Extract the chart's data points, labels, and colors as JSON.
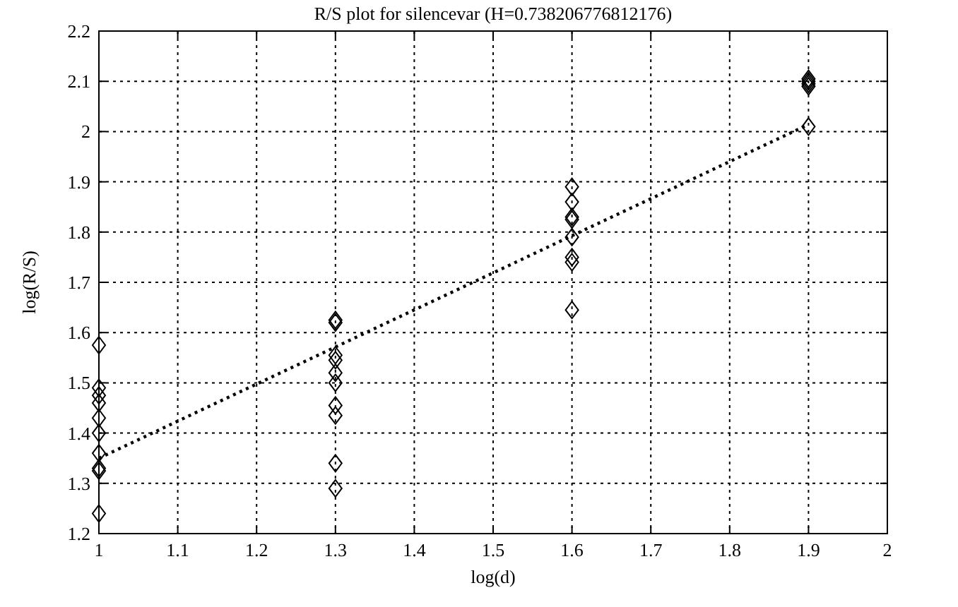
{
  "chart_data": {
    "type": "scatter",
    "title": "R/S plot for silencevar (H=0.738206776812176)",
    "xlabel": "log(d)",
    "ylabel": "log(R/S)",
    "series": [
      {
        "color": "#000000",
        "marker": "diamond",
        "x": [
          1,
          1,
          1,
          1,
          1,
          1,
          1,
          1,
          1,
          1,
          1.3,
          1.3,
          1.3,
          1.3,
          1.3,
          1.3,
          1.3,
          1.3,
          1.3,
          1.3,
          1.6,
          1.6,
          1.6,
          1.6,
          1.6,
          1.6,
          1.6,
          1.6,
          1.9,
          1.9,
          1.9,
          1.9,
          1.9
        ],
        "values": [
          1.575,
          1.49,
          1.475,
          1.46,
          1.43,
          1.4,
          1.36,
          1.33,
          1.325,
          1.24,
          1.625,
          1.62,
          1.555,
          1.545,
          1.52,
          1.5,
          1.455,
          1.435,
          1.34,
          1.29,
          1.89,
          1.86,
          1.83,
          1.825,
          1.79,
          1.75,
          1.74,
          1.645,
          2.105,
          2.1,
          2.095,
          2.09,
          2.01
        ]
      },
      {
        "type": "line",
        "color": "#000000",
        "line_style": "dotted",
        "marker": "none",
        "x": [
          1,
          1.9
        ],
        "values": [
          1.35,
          2.014
        ]
      }
    ],
    "xlim": [
      1,
      2
    ],
    "ylim": [
      1.2,
      2.2
    ],
    "xticks": [
      1,
      1.1,
      1.2,
      1.3,
      1.4,
      1.5,
      1.6,
      1.7,
      1.8,
      1.9,
      2
    ],
    "yticks": [
      1.2,
      1.3,
      1.4,
      1.5,
      1.6,
      1.7,
      1.8,
      1.9,
      2,
      2.1,
      2.2
    ],
    "grid": true
  }
}
